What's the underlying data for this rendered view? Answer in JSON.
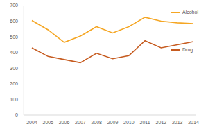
{
  "chart_data": {
    "type": "line",
    "categories": [
      "2004",
      "2005",
      "2006",
      "2007",
      "2008",
      "2009",
      "2010",
      "2011",
      "2012",
      "2013",
      "2014"
    ],
    "series": [
      {
        "name": "Alcohol",
        "color": "#f5a623",
        "values": [
          605,
          545,
          465,
          505,
          565,
          525,
          565,
          625,
          600,
          590,
          585
        ]
      },
      {
        "name": "Drug",
        "color": "#c65b1f",
        "values": [
          430,
          375,
          355,
          335,
          395,
          360,
          380,
          475,
          430,
          450,
          470
        ]
      }
    ],
    "ylim": [
      0,
      700
    ],
    "yticks": [
      0,
      100,
      200,
      300,
      400,
      500,
      600,
      700
    ],
    "grid": false
  }
}
